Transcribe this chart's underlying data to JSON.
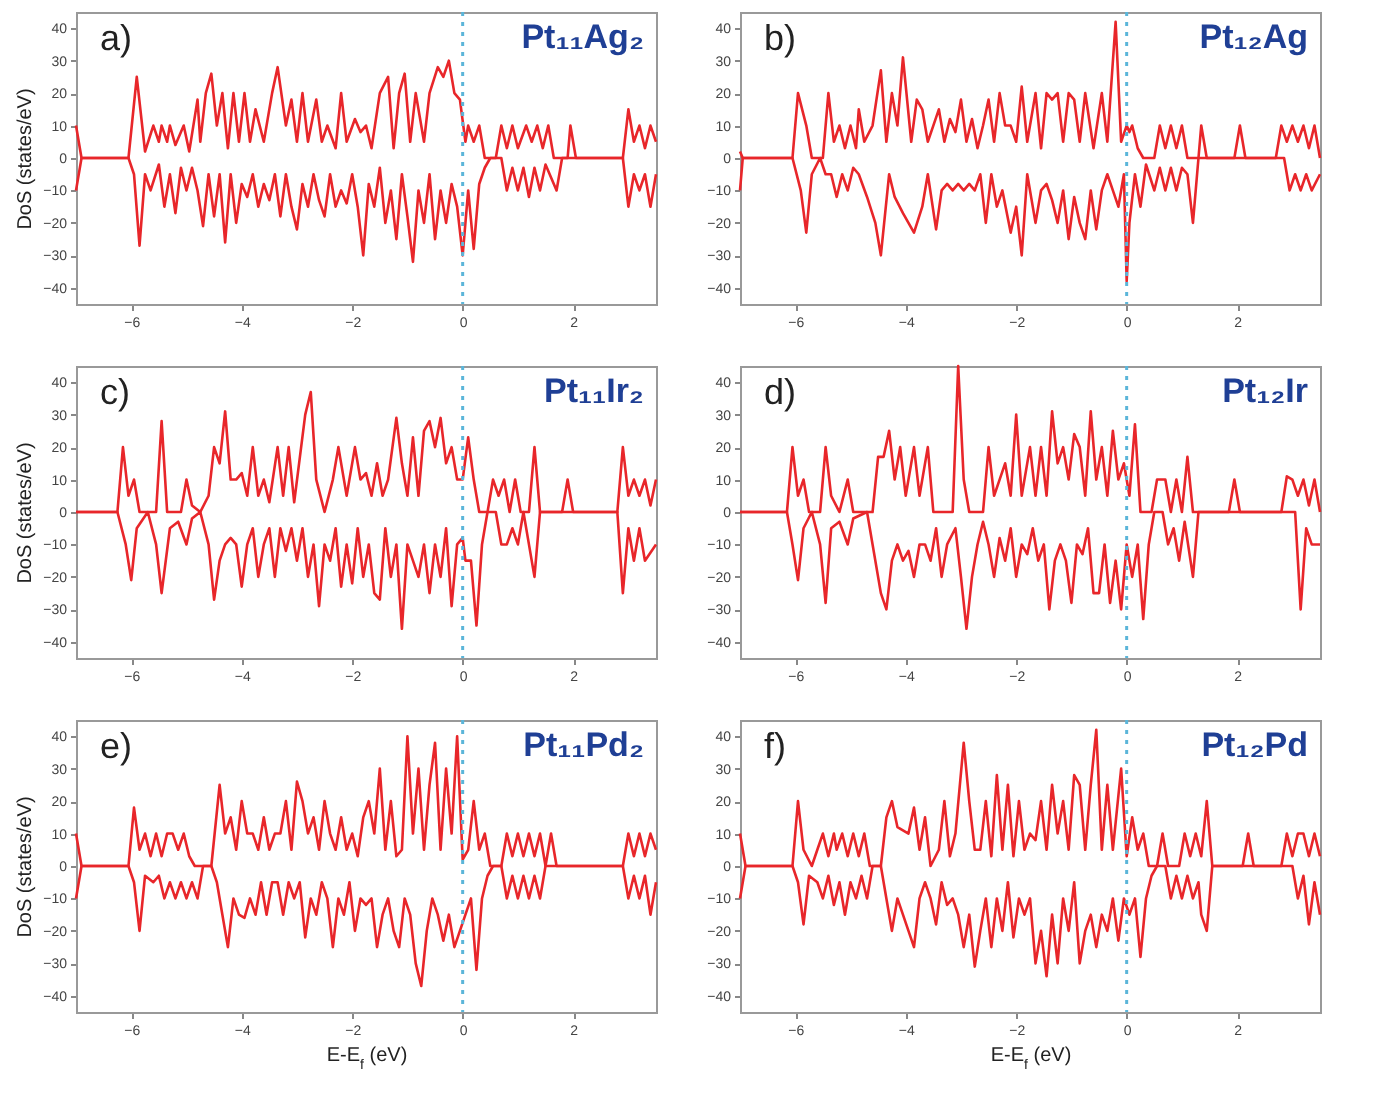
{
  "chart_data": [
    {
      "type": "line",
      "annotations": [
        "a)",
        "Pt₁₁Ag₂"
      ],
      "ylabel": "DoS (states/eV)",
      "xlim": [
        -7,
        3.5
      ],
      "ylim": [
        -45,
        45
      ],
      "xticks": [
        -6,
        -4,
        -2,
        0,
        2
      ],
      "yticks": [
        -40,
        -30,
        -20,
        -10,
        0,
        10,
        20,
        30,
        40
      ],
      "ref_lines": [
        {
          "axis": "x",
          "value": 0,
          "color": "#5bb5d9",
          "line_style": "dotted"
        }
      ],
      "series": [
        {
          "color": "#e8262a",
          "x": [
            -7,
            -6.9,
            -6.05,
            -5.9,
            -5.75,
            -5.6,
            -5.5,
            -5.45,
            -5.35,
            -5.3,
            -5.2,
            -5.05,
            -4.95,
            -4.8,
            -4.75,
            -4.65,
            -4.55,
            -4.45,
            -4.35,
            -4.25,
            -4.15,
            -4.05,
            -3.95,
            -3.85,
            -3.75,
            -3.6,
            -3.45,
            -3.35,
            -3.2,
            -3.1,
            -3.0,
            -2.9,
            -2.8,
            -2.65,
            -2.55,
            -2.45,
            -2.3,
            -2.2,
            -2.1,
            -1.95,
            -1.85,
            -1.75,
            -1.65,
            -1.5,
            -1.35,
            -1.25,
            -1.15,
            -1.05,
            -0.95,
            -0.85,
            -0.7,
            -0.6,
            -0.45,
            -0.35,
            -0.25,
            -0.15,
            -0.05,
            0.05,
            0.1,
            0.2,
            0.3,
            0.4,
            0.6,
            0.7,
            0.8,
            0.9,
            1.0,
            1.15,
            1.25,
            1.35,
            1.45,
            1.55,
            1.65,
            1.9,
            1.95,
            2.05,
            2.9,
            3.0,
            3.1,
            3.2,
            3.3,
            3.4,
            3.5
          ],
          "values": [
            10,
            0,
            0,
            25,
            2,
            10,
            5,
            10,
            5,
            10,
            4,
            10,
            2,
            18,
            5,
            20,
            26,
            10,
            20,
            3,
            20,
            5,
            20,
            5,
            15,
            5,
            20,
            28,
            10,
            18,
            5,
            20,
            5,
            18,
            5,
            10,
            3,
            20,
            5,
            12,
            8,
            10,
            3,
            20,
            25,
            3,
            20,
            26,
            5,
            20,
            5,
            20,
            28,
            25,
            30,
            20,
            18,
            5,
            10,
            5,
            10,
            0,
            0,
            10,
            3,
            10,
            3,
            10,
            5,
            10,
            3,
            10,
            0,
            0,
            10,
            0,
            0,
            15,
            5,
            10,
            3,
            10,
            5
          ]
        },
        {
          "color": "#e8262a",
          "x": [
            -7,
            -6.9,
            -6.05,
            -5.95,
            -5.85,
            -5.75,
            -5.65,
            -5.5,
            -5.4,
            -5.3,
            -5.2,
            -5.1,
            -5.0,
            -4.9,
            -4.8,
            -4.7,
            -4.6,
            -4.5,
            -4.4,
            -4.3,
            -4.2,
            -4.1,
            -4.0,
            -3.9,
            -3.8,
            -3.7,
            -3.6,
            -3.5,
            -3.4,
            -3.3,
            -3.2,
            -3.1,
            -3.0,
            -2.9,
            -2.8,
            -2.7,
            -2.6,
            -2.5,
            -2.4,
            -2.3,
            -2.2,
            -2.1,
            -2.0,
            -1.9,
            -1.8,
            -1.7,
            -1.6,
            -1.5,
            -1.4,
            -1.3,
            -1.2,
            -1.1,
            -1.0,
            -0.9,
            -0.8,
            -0.7,
            -0.6,
            -0.5,
            -0.4,
            -0.3,
            -0.2,
            -0.1,
            0.0,
            0.1,
            0.2,
            0.3,
            0.4,
            0.5,
            0.7,
            0.8,
            0.9,
            1.0,
            1.1,
            1.2,
            1.3,
            1.4,
            1.5,
            1.7,
            1.8,
            2.9,
            3.0,
            3.1,
            3.2,
            3.3,
            3.4,
            3.5
          ],
          "values": [
            -10,
            0,
            0,
            -5,
            -27,
            -5,
            -10,
            -2,
            -15,
            -5,
            -17,
            -3,
            -10,
            -3,
            -10,
            -21,
            -5,
            -18,
            -5,
            -26,
            -5,
            -20,
            -8,
            -12,
            -5,
            -15,
            -8,
            -13,
            -5,
            -18,
            -5,
            -15,
            -22,
            -8,
            -15,
            -5,
            -13,
            -18,
            -5,
            -15,
            -10,
            -14,
            -5,
            -15,
            -30,
            -8,
            -15,
            -3,
            -20,
            -10,
            -25,
            -5,
            -18,
            -32,
            -10,
            -20,
            -5,
            -25,
            -10,
            -20,
            -8,
            -15,
            -30,
            -10,
            -28,
            -8,
            -3,
            0,
            0,
            -10,
            -3,
            -10,
            -3,
            -12,
            -3,
            -10,
            -2,
            -10,
            0,
            0,
            -15,
            -5,
            -10,
            -5,
            -15,
            -5
          ]
        }
      ]
    },
    {
      "type": "line",
      "annotations": [
        "b)",
        "Pt₁₂Ag"
      ],
      "xlim": [
        -7,
        3.5
      ],
      "ylim": [
        -45,
        45
      ],
      "xticks": [
        -6,
        -4,
        -2,
        0,
        2
      ],
      "yticks": [
        -40,
        -30,
        -20,
        -10,
        0,
        10,
        20,
        30,
        40
      ],
      "ref_lines": [
        {
          "axis": "x",
          "value": 0,
          "color": "#5bb5d9",
          "line_style": "dotted"
        }
      ],
      "series": [
        {
          "color": "#e8262a",
          "x": [
            -7,
            -6.95,
            -6.05,
            -5.95,
            -5.8,
            -5.7,
            -5.5,
            -5.4,
            -5.3,
            -5.2,
            -5.1,
            -5.0,
            -4.9,
            -4.85,
            -4.75,
            -4.6,
            -4.45,
            -4.35,
            -4.25,
            -4.15,
            -4.05,
            -3.9,
            -3.8,
            -3.7,
            -3.6,
            -3.5,
            -3.4,
            -3.3,
            -3.2,
            -3.1,
            -3.0,
            -2.9,
            -2.8,
            -2.7,
            -2.6,
            -2.5,
            -2.4,
            -2.3,
            -2.2,
            -2.1,
            -2.0,
            -1.9,
            -1.8,
            -1.65,
            -1.55,
            -1.45,
            -1.35,
            -1.25,
            -1.15,
            -1.05,
            -0.95,
            -0.85,
            -0.75,
            -0.6,
            -0.45,
            -0.35,
            -0.2,
            -0.1,
            0.0,
            0.05,
            0.1,
            0.2,
            0.3,
            0.5,
            0.6,
            0.7,
            0.8,
            0.9,
            1.0,
            1.1,
            1.3,
            1.35,
            1.45,
            1.95,
            2.05,
            2.15,
            2.7,
            2.8,
            2.9,
            3.0,
            3.1,
            3.2,
            3.3,
            3.4,
            3.5
          ],
          "values": [
            2,
            0,
            0,
            20,
            10,
            0,
            0,
            20,
            5,
            10,
            3,
            10,
            3,
            15,
            5,
            10,
            27,
            5,
            20,
            10,
            31,
            5,
            18,
            15,
            5,
            10,
            15,
            5,
            12,
            8,
            18,
            5,
            12,
            3,
            10,
            18,
            5,
            20,
            10,
            10,
            5,
            22,
            5,
            20,
            3,
            20,
            18,
            20,
            5,
            20,
            18,
            5,
            20,
            3,
            20,
            5,
            42,
            5,
            10,
            8,
            10,
            3,
            0,
            0,
            10,
            3,
            10,
            3,
            10,
            0,
            0,
            10,
            0,
            0,
            10,
            0,
            0,
            10,
            5,
            10,
            5,
            10,
            3,
            10,
            0
          ]
        },
        {
          "color": "#e8262a",
          "x": [
            -7,
            -6.95,
            -6.05,
            -5.9,
            -5.8,
            -5.7,
            -5.55,
            -5.45,
            -5.35,
            -5.25,
            -5.15,
            -5.05,
            -4.95,
            -4.85,
            -4.7,
            -4.55,
            -4.45,
            -4.3,
            -4.2,
            -4.05,
            -3.95,
            -3.85,
            -3.7,
            -3.6,
            -3.45,
            -3.35,
            -3.25,
            -3.15,
            -3.05,
            -2.95,
            -2.85,
            -2.75,
            -2.65,
            -2.55,
            -2.45,
            -2.35,
            -2.25,
            -2.1,
            -2.0,
            -1.9,
            -1.8,
            -1.65,
            -1.55,
            -1.45,
            -1.35,
            -1.25,
            -1.15,
            -1.05,
            -0.95,
            -0.85,
            -0.75,
            -0.65,
            -0.55,
            -0.45,
            -0.35,
            -0.25,
            -0.15,
            -0.05,
            0.0,
            0.05,
            0.15,
            0.25,
            0.35,
            0.5,
            0.6,
            0.7,
            0.8,
            0.9,
            1.0,
            1.1,
            1.2,
            1.3,
            2.85,
            2.95,
            3.05,
            3.15,
            3.25,
            3.35,
            3.5
          ],
          "values": [
            -10,
            0,
            0,
            -10,
            -23,
            -5,
            0,
            -5,
            -5,
            -12,
            -5,
            -10,
            -3,
            -5,
            -12,
            -20,
            -30,
            -5,
            -12,
            -17,
            -20,
            -23,
            -15,
            -5,
            -22,
            -10,
            -8,
            -10,
            -8,
            -10,
            -8,
            -10,
            -5,
            -20,
            -5,
            -15,
            -10,
            -23,
            -15,
            -30,
            -5,
            -20,
            -10,
            -8,
            -13,
            -20,
            -10,
            -25,
            -12,
            -20,
            -25,
            -10,
            -22,
            -10,
            -5,
            -10,
            -15,
            -5,
            -38,
            -20,
            -5,
            -15,
            -2,
            -10,
            -3,
            -10,
            -3,
            -10,
            -3,
            -5,
            -20,
            0,
            0,
            -10,
            -5,
            -10,
            -5,
            -10,
            -5
          ]
        }
      ]
    },
    {
      "type": "line",
      "annotations": [
        "c)",
        "Pt₁₁Ir₂"
      ],
      "ylabel": "DoS (states/eV)",
      "xlim": [
        -7,
        3.5
      ],
      "ylim": [
        -45,
        45
      ],
      "xticks": [
        -6,
        -4,
        -2,
        0,
        2
      ],
      "yticks": [
        -40,
        -30,
        -20,
        -10,
        0,
        10,
        20,
        30,
        40
      ],
      "ref_lines": [
        {
          "axis": "x",
          "value": 0,
          "color": "#5bb5d9",
          "line_style": "dotted"
        }
      ],
      "series": [
        {
          "color": "#e8262a",
          "x": [
            -7,
            -6.25,
            -6.15,
            -6.05,
            -5.95,
            -5.85,
            -5.55,
            -5.45,
            -5.35,
            -5.1,
            -5.0,
            -4.9,
            -4.75,
            -4.6,
            -4.5,
            -4.4,
            -4.3,
            -4.2,
            -4.1,
            -4.0,
            -3.9,
            -3.8,
            -3.7,
            -3.6,
            -3.5,
            -3.35,
            -3.25,
            -3.15,
            -3.05,
            -2.85,
            -2.75,
            -2.65,
            -2.5,
            -2.35,
            -2.25,
            -2.1,
            -1.95,
            -1.85,
            -1.75,
            -1.65,
            -1.55,
            -1.45,
            -1.35,
            -1.2,
            -1.1,
            -1.0,
            -0.9,
            -0.8,
            -0.7,
            -0.6,
            -0.5,
            -0.4,
            -0.3,
            -0.2,
            -0.1,
            0.0,
            0.1,
            0.2,
            0.3,
            0.45,
            0.55,
            0.65,
            0.75,
            0.85,
            0.95,
            1.05,
            1.2,
            1.3,
            1.4,
            1.8,
            1.9,
            2.0,
            2.8,
            2.9,
            3.0,
            3.1,
            3.2,
            3.3,
            3.4,
            3.5
          ],
          "values": [
            0,
            0,
            20,
            5,
            10,
            0,
            0,
            28,
            0,
            0,
            10,
            2,
            0,
            5,
            20,
            15,
            31,
            10,
            10,
            12,
            5,
            20,
            5,
            10,
            3,
            20,
            5,
            20,
            3,
            30,
            37,
            10,
            0,
            10,
            20,
            5,
            20,
            10,
            12,
            5,
            15,
            5,
            10,
            29,
            15,
            5,
            23,
            5,
            25,
            28,
            20,
            29,
            15,
            20,
            10,
            10,
            23,
            10,
            0,
            0,
            10,
            5,
            10,
            0,
            10,
            0,
            0,
            20,
            0,
            0,
            10,
            0,
            0,
            20,
            5,
            10,
            5,
            10,
            2,
            10
          ]
        },
        {
          "color": "#e8262a",
          "x": [
            -7,
            -6.25,
            -6.1,
            -6.0,
            -5.9,
            -5.7,
            -5.55,
            -5.45,
            -5.3,
            -5.15,
            -5.0,
            -4.9,
            -4.75,
            -4.6,
            -4.5,
            -4.4,
            -4.3,
            -4.2,
            -4.1,
            -4.0,
            -3.9,
            -3.8,
            -3.7,
            -3.6,
            -3.5,
            -3.4,
            -3.3,
            -3.2,
            -3.1,
            -3.0,
            -2.9,
            -2.8,
            -2.7,
            -2.6,
            -2.5,
            -2.4,
            -2.3,
            -2.2,
            -2.1,
            -2.0,
            -1.9,
            -1.8,
            -1.7,
            -1.6,
            -1.5,
            -1.4,
            -1.3,
            -1.2,
            -1.1,
            -1.0,
            -0.9,
            -0.8,
            -0.7,
            -0.6,
            -0.5,
            -0.4,
            -0.3,
            -0.2,
            -0.1,
            0.0,
            0.05,
            0.15,
            0.25,
            0.35,
            0.45,
            0.6,
            0.7,
            0.8,
            0.9,
            1.0,
            1.1,
            1.3,
            1.4,
            2.8,
            2.9,
            3.0,
            3.1,
            3.2,
            3.3,
            3.5
          ],
          "values": [
            0,
            0,
            -10,
            -21,
            -5,
            0,
            -10,
            -25,
            -5,
            -3,
            -10,
            -2,
            0,
            -10,
            -27,
            -15,
            -10,
            -8,
            -10,
            -23,
            -10,
            -5,
            -20,
            -10,
            -5,
            -20,
            -5,
            -12,
            -5,
            -15,
            -5,
            -20,
            -10,
            -29,
            -10,
            -15,
            -5,
            -23,
            -10,
            -22,
            -5,
            -20,
            -10,
            -25,
            -27,
            -5,
            -20,
            -10,
            -36,
            -10,
            -15,
            -20,
            -10,
            -25,
            -10,
            -20,
            -5,
            -29,
            -10,
            -8,
            -15,
            -15,
            -35,
            -10,
            0,
            0,
            -10,
            -10,
            -5,
            -10,
            0,
            -20,
            0,
            0,
            -25,
            -5,
            -15,
            -5,
            -15,
            -10
          ]
        }
      ]
    },
    {
      "type": "line",
      "annotations": [
        "d)",
        "Pt₁₂Ir"
      ],
      "xlim": [
        -7,
        3.5
      ],
      "ylim": [
        -45,
        45
      ],
      "xticks": [
        -6,
        -4,
        -2,
        0,
        2
      ],
      "yticks": [
        -40,
        -30,
        -20,
        -10,
        0,
        10,
        20,
        30,
        40
      ],
      "ref_lines": [
        {
          "axis": "x",
          "value": 0,
          "color": "#5bb5d9",
          "line_style": "dotted"
        }
      ],
      "series": [
        {
          "color": "#e8262a",
          "x": [
            -7,
            -6.15,
            -6.05,
            -5.95,
            -5.85,
            -5.75,
            -5.55,
            -5.45,
            -5.35,
            -5.2,
            -5.05,
            -4.95,
            -4.6,
            -4.5,
            -4.4,
            -4.3,
            -4.2,
            -4.1,
            -4.0,
            -3.85,
            -3.75,
            -3.6,
            -3.5,
            -3.15,
            -3.05,
            -2.95,
            -2.85,
            -2.6,
            -2.5,
            -2.4,
            -2.3,
            -2.2,
            -2.1,
            -2.0,
            -1.9,
            -1.75,
            -1.65,
            -1.55,
            -1.45,
            -1.35,
            -1.25,
            -1.15,
            -1.05,
            -0.95,
            -0.85,
            -0.75,
            -0.65,
            -0.55,
            -0.45,
            -0.35,
            -0.25,
            -0.15,
            -0.05,
            0.05,
            0.15,
            0.25,
            0.45,
            0.55,
            0.7,
            0.8,
            0.9,
            1.0,
            1.1,
            1.2,
            1.85,
            1.95,
            2.05,
            2.8,
            2.9,
            3.0,
            3.1,
            3.2,
            3.3,
            3.4,
            3.5
          ],
          "values": [
            0,
            0,
            20,
            5,
            10,
            0,
            0,
            20,
            5,
            0,
            10,
            0,
            0,
            17,
            17,
            25,
            10,
            20,
            5,
            20,
            5,
            20,
            0,
            0,
            45,
            10,
            0,
            0,
            20,
            5,
            10,
            15,
            5,
            30,
            5,
            20,
            5,
            20,
            5,
            31,
            15,
            20,
            10,
            24,
            20,
            5,
            31,
            10,
            20,
            5,
            25,
            10,
            15,
            5,
            27,
            0,
            0,
            10,
            10,
            0,
            10,
            0,
            17,
            0,
            0,
            10,
            0,
            0,
            11,
            10,
            5,
            10,
            2,
            10,
            0
          ]
        },
        {
          "color": "#e8262a",
          "x": [
            -7,
            -6.15,
            -6.05,
            -5.95,
            -5.85,
            -5.7,
            -5.55,
            -5.45,
            -5.35,
            -5.2,
            -5.05,
            -4.95,
            -4.7,
            -4.6,
            -4.45,
            -4.35,
            -4.25,
            -4.15,
            -4.05,
            -3.95,
            -3.85,
            -3.75,
            -3.65,
            -3.55,
            -3.45,
            -3.35,
            -3.25,
            -3.1,
            -3.0,
            -2.9,
            -2.8,
            -2.7,
            -2.6,
            -2.5,
            -2.4,
            -2.3,
            -2.2,
            -2.1,
            -2.0,
            -1.9,
            -1.8,
            -1.7,
            -1.6,
            -1.5,
            -1.4,
            -1.3,
            -1.2,
            -1.1,
            -1.0,
            -0.9,
            -0.8,
            -0.7,
            -0.6,
            -0.5,
            -0.4,
            -0.3,
            -0.2,
            -0.1,
            0.0,
            0.1,
            0.2,
            0.3,
            0.4,
            0.5,
            0.65,
            0.75,
            0.85,
            0.95,
            1.05,
            1.2,
            1.3,
            3.05,
            3.15,
            3.25,
            3.35,
            3.5
          ],
          "values": [
            0,
            0,
            -10,
            -21,
            -5,
            0,
            -10,
            -28,
            -5,
            -3,
            -10,
            -2,
            0,
            -10,
            -25,
            -30,
            -15,
            -10,
            -15,
            -12,
            -20,
            -10,
            -10,
            -15,
            -5,
            -20,
            -10,
            -5,
            -20,
            -36,
            -20,
            -10,
            -3,
            -10,
            -20,
            -8,
            -15,
            -5,
            -20,
            -10,
            -13,
            -5,
            -15,
            -10,
            -30,
            -15,
            -10,
            -15,
            -28,
            -10,
            -13,
            -5,
            -25,
            -25,
            -10,
            -28,
            -15,
            -30,
            -10,
            -20,
            -10,
            -33,
            -10,
            0,
            0,
            -10,
            -5,
            -15,
            -3,
            -20,
            0,
            0,
            -30,
            -5,
            -10,
            -10
          ]
        }
      ]
    },
    {
      "type": "line",
      "annotations": [
        "e)",
        "Pt₁₁Pd₂"
      ],
      "xlabel": "E-E$_{f}$ (eV)",
      "ylabel": "DoS (states/eV)",
      "xlim": [
        -7,
        3.5
      ],
      "ylim": [
        -45,
        45
      ],
      "xticks": [
        -6,
        -4,
        -2,
        0,
        2
      ],
      "yticks": [
        -40,
        -30,
        -20,
        -10,
        0,
        10,
        20,
        30,
        40
      ],
      "ref_lines": [
        {
          "axis": "x",
          "value": 0,
          "color": "#5bb5d9",
          "line_style": "dotted"
        }
      ],
      "series": [
        {
          "color": "#e8262a",
          "x": [
            -7,
            -6.9,
            -6.05,
            -5.95,
            -5.85,
            -5.75,
            -5.65,
            -5.55,
            -5.45,
            -5.35,
            -5.25,
            -5.15,
            -5.05,
            -4.95,
            -4.85,
            -4.55,
            -4.4,
            -4.3,
            -4.2,
            -4.1,
            -4.0,
            -3.9,
            -3.8,
            -3.7,
            -3.6,
            -3.5,
            -3.4,
            -3.3,
            -3.2,
            -3.1,
            -3.0,
            -2.9,
            -2.8,
            -2.7,
            -2.6,
            -2.5,
            -2.4,
            -2.3,
            -2.2,
            -2.1,
            -2.0,
            -1.9,
            -1.8,
            -1.7,
            -1.6,
            -1.5,
            -1.4,
            -1.3,
            -1.2,
            -1.1,
            -1.0,
            -0.9,
            -0.8,
            -0.7,
            -0.6,
            -0.5,
            -0.4,
            -0.3,
            -0.2,
            -0.1,
            0.0,
            0.1,
            0.2,
            0.3,
            0.4,
            0.5,
            0.7,
            0.8,
            0.9,
            1.0,
            1.1,
            1.2,
            1.3,
            1.4,
            1.5,
            1.6,
            1.7,
            2.9,
            3.0,
            3.1,
            3.2,
            3.3,
            3.4,
            3.5
          ],
          "values": [
            10,
            0,
            0,
            18,
            5,
            10,
            3,
            10,
            3,
            10,
            10,
            5,
            10,
            3,
            0,
            0,
            25,
            10,
            15,
            5,
            20,
            10,
            10,
            5,
            15,
            5,
            10,
            10,
            20,
            5,
            26,
            20,
            10,
            15,
            5,
            20,
            10,
            5,
            15,
            5,
            10,
            3,
            15,
            20,
            10,
            30,
            5,
            20,
            3,
            5,
            40,
            10,
            30,
            5,
            25,
            38,
            5,
            30,
            10,
            40,
            2,
            5,
            20,
            5,
            10,
            0,
            0,
            10,
            3,
            10,
            3,
            10,
            3,
            10,
            0,
            10,
            0,
            0,
            10,
            3,
            10,
            3,
            10,
            5
          ]
        },
        {
          "color": "#e8262a",
          "x": [
            -7,
            -6.9,
            -6.05,
            -5.95,
            -5.85,
            -5.75,
            -5.6,
            -5.5,
            -5.4,
            -5.3,
            -5.2,
            -5.1,
            -5.0,
            -4.9,
            -4.8,
            -4.7,
            -4.55,
            -4.45,
            -4.35,
            -4.25,
            -4.15,
            -4.05,
            -3.95,
            -3.85,
            -3.75,
            -3.65,
            -3.55,
            -3.45,
            -3.35,
            -3.25,
            -3.15,
            -3.05,
            -2.95,
            -2.85,
            -2.75,
            -2.65,
            -2.55,
            -2.45,
            -2.35,
            -2.25,
            -2.15,
            -2.05,
            -1.95,
            -1.85,
            -1.75,
            -1.65,
            -1.55,
            -1.45,
            -1.35,
            -1.25,
            -1.15,
            -1.05,
            -0.95,
            -0.85,
            -0.75,
            -0.65,
            -0.55,
            -0.45,
            -0.35,
            -0.25,
            -0.15,
            -0.05,
            0.05,
            0.15,
            0.25,
            0.35,
            0.45,
            0.55,
            0.7,
            0.8,
            0.9,
            1.0,
            1.1,
            1.2,
            1.3,
            1.4,
            1.5,
            2.9,
            3.0,
            3.1,
            3.2,
            3.3,
            3.4,
            3.5
          ],
          "values": [
            -10,
            0,
            0,
            -5,
            -20,
            -3,
            -5,
            -3,
            -10,
            -5,
            -10,
            -5,
            -10,
            -5,
            -10,
            0,
            0,
            -5,
            -15,
            -25,
            -10,
            -15,
            -16,
            -10,
            -15,
            -5,
            -15,
            -5,
            -5,
            -15,
            -5,
            -10,
            -5,
            -22,
            -10,
            -15,
            -5,
            -10,
            -25,
            -10,
            -15,
            -5,
            -20,
            -10,
            -12,
            -10,
            -25,
            -15,
            -10,
            -20,
            -25,
            -10,
            -15,
            -30,
            -37,
            -20,
            -10,
            -15,
            -23,
            -15,
            -25,
            -20,
            -15,
            -10,
            -32,
            -10,
            -3,
            0,
            0,
            -10,
            -3,
            -10,
            -3,
            -10,
            -3,
            -10,
            0,
            0,
            -10,
            -3,
            -10,
            -3,
            -15,
            -5
          ]
        }
      ]
    },
    {
      "type": "line",
      "annotations": [
        "f)",
        "Pt₁₂Pd"
      ],
      "xlabel": "E-E$_{f}$ (eV)",
      "xlim": [
        -7,
        3.5
      ],
      "ylim": [
        -45,
        45
      ],
      "xticks": [
        -6,
        -4,
        -2,
        0,
        2
      ],
      "yticks": [
        -40,
        -30,
        -20,
        -10,
        0,
        10,
        20,
        30,
        40
      ],
      "ref_lines": [
        {
          "axis": "x",
          "value": 0,
          "color": "#5bb5d9",
          "line_style": "dotted"
        }
      ],
      "series": [
        {
          "color": "#e8262a",
          "x": [
            -7,
            -6.9,
            -6.05,
            -5.95,
            -5.85,
            -5.7,
            -5.6,
            -5.5,
            -5.4,
            -5.3,
            -5.25,
            -5.15,
            -5.05,
            -4.95,
            -4.85,
            -4.75,
            -4.65,
            -4.45,
            -4.35,
            -4.25,
            -4.15,
            -4.05,
            -3.95,
            -3.85,
            -3.75,
            -3.65,
            -3.55,
            -3.4,
            -3.3,
            -3.2,
            -3.1,
            -2.95,
            -2.85,
            -2.75,
            -2.65,
            -2.55,
            -2.45,
            -2.35,
            -2.25,
            -2.15,
            -2.05,
            -1.95,
            -1.85,
            -1.75,
            -1.65,
            -1.55,
            -1.45,
            -1.35,
            -1.25,
            -1.15,
            -1.05,
            -0.95,
            -0.85,
            -0.75,
            -0.65,
            -0.55,
            -0.45,
            -0.35,
            -0.25,
            -0.1,
            0.0,
            0.1,
            0.2,
            0.3,
            0.4,
            0.55,
            0.65,
            0.75,
            0.95,
            1.05,
            1.15,
            1.25,
            1.35,
            1.45,
            1.55,
            2.1,
            2.2,
            2.3,
            2.8,
            2.9,
            3.0,
            3.1,
            3.2,
            3.3,
            3.4,
            3.5
          ],
          "values": [
            10,
            0,
            0,
            20,
            5,
            0,
            5,
            10,
            3,
            10,
            5,
            10,
            3,
            10,
            3,
            10,
            0,
            0,
            15,
            20,
            12,
            11,
            10,
            18,
            5,
            15,
            0,
            5,
            20,
            3,
            10,
            38,
            20,
            5,
            5,
            20,
            3,
            28,
            5,
            25,
            3,
            20,
            5,
            10,
            8,
            20,
            5,
            25,
            10,
            20,
            5,
            28,
            25,
            5,
            25,
            42,
            5,
            25,
            5,
            30,
            3,
            15,
            5,
            10,
            0,
            0,
            10,
            0,
            0,
            10,
            3,
            10,
            3,
            20,
            0,
            0,
            10,
            0,
            0,
            10,
            3,
            10,
            10,
            3,
            10,
            3
          ]
        },
        {
          "color": "#e8262a",
          "x": [
            -7,
            -6.9,
            -6.05,
            -5.95,
            -5.85,
            -5.75,
            -5.6,
            -5.5,
            -5.4,
            -5.3,
            -5.2,
            -5.1,
            -5.0,
            -4.9,
            -4.8,
            -4.7,
            -4.6,
            -4.45,
            -4.35,
            -4.25,
            -4.15,
            -4.05,
            -3.95,
            -3.85,
            -3.75,
            -3.65,
            -3.55,
            -3.45,
            -3.35,
            -3.25,
            -3.15,
            -3.05,
            -2.95,
            -2.85,
            -2.75,
            -2.65,
            -2.55,
            -2.45,
            -2.35,
            -2.25,
            -2.15,
            -2.05,
            -1.95,
            -1.85,
            -1.75,
            -1.65,
            -1.55,
            -1.45,
            -1.35,
            -1.25,
            -1.15,
            -1.05,
            -0.95,
            -0.85,
            -0.75,
            -0.65,
            -0.55,
            -0.45,
            -0.35,
            -0.25,
            -0.15,
            -0.05,
            0.05,
            0.15,
            0.25,
            0.35,
            0.45,
            0.55,
            0.7,
            0.8,
            0.9,
            1.0,
            1.1,
            1.2,
            1.3,
            1.35,
            1.45,
            1.55,
            3.0,
            3.1,
            3.2,
            3.3,
            3.4,
            3.5
          ],
          "values": [
            -10,
            0,
            0,
            -5,
            -18,
            -3,
            -5,
            -10,
            -3,
            -12,
            -5,
            -15,
            -5,
            -10,
            -3,
            -10,
            0,
            0,
            -10,
            -20,
            -10,
            -15,
            -20,
            -25,
            -10,
            -5,
            -10,
            -18,
            -5,
            -12,
            -10,
            -15,
            -25,
            -15,
            -31,
            -20,
            -10,
            -25,
            -10,
            -20,
            -5,
            -22,
            -10,
            -15,
            -10,
            -30,
            -20,
            -34,
            -15,
            -30,
            -10,
            -20,
            -5,
            -30,
            -20,
            -15,
            -25,
            -15,
            -20,
            -10,
            -23,
            -10,
            -15,
            -10,
            -28,
            -10,
            -3,
            0,
            0,
            -10,
            -3,
            -10,
            -3,
            -10,
            -5,
            -15,
            -20,
            0,
            0,
            -10,
            -3,
            -18,
            -5,
            -15
          ]
        }
      ]
    }
  ]
}
